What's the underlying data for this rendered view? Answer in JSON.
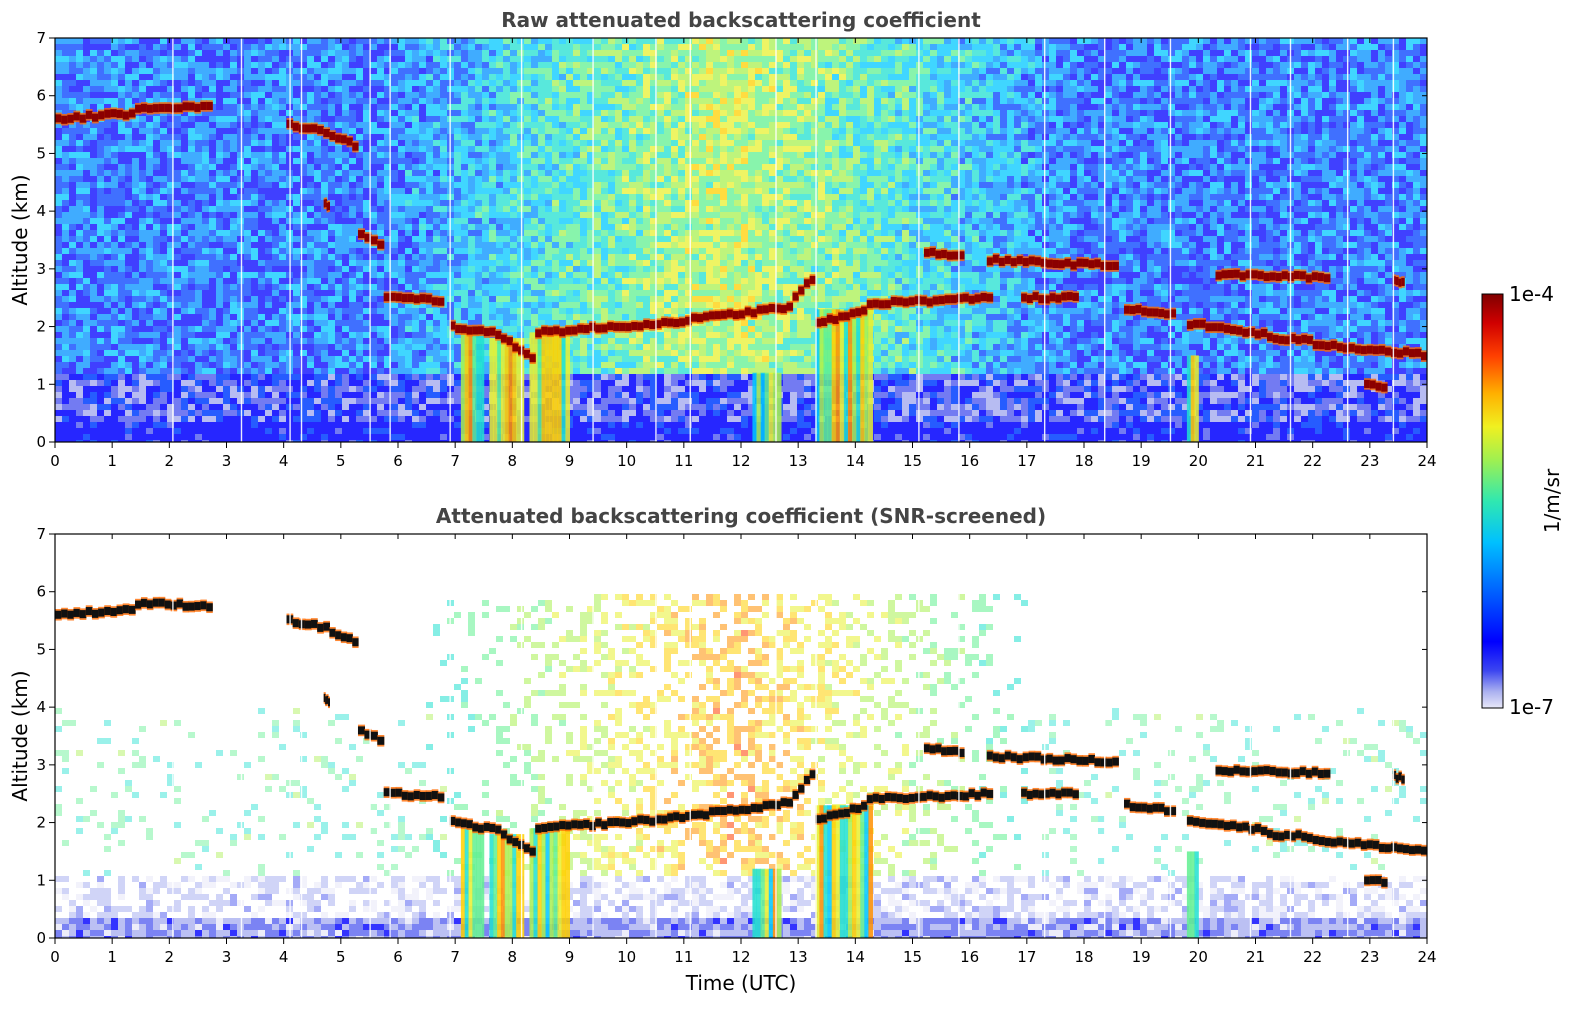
{
  "chart_data": [
    {
      "type": "heatmap",
      "title": "Raw attenuated backscattering coefficient",
      "xlabel": "",
      "ylabel": "Altitude (km)",
      "xlim": [
        0,
        24
      ],
      "ylim": [
        0,
        7
      ],
      "x_ticks": [
        "0",
        "1",
        "2",
        "3",
        "4",
        "5",
        "6",
        "7",
        "8",
        "9",
        "10",
        "11",
        "12",
        "13",
        "14",
        "15",
        "16",
        "17",
        "18",
        "19",
        "20",
        "21",
        "22",
        "23",
        "24"
      ],
      "y_ticks": [
        "0",
        "1",
        "2",
        "3",
        "4",
        "5",
        "6",
        "7"
      ],
      "screened": false,
      "cloud_layers": [
        {
          "t": [
            0,
            1.4
          ],
          "alt": [
            5.6,
            5.7
          ]
        },
        {
          "t": [
            1.4,
            2.75
          ],
          "alt": [
            5.8,
            5.8
          ]
        },
        {
          "t": [
            4.05,
            4.8
          ],
          "alt": [
            5.5,
            5.35
          ]
        },
        {
          "t": [
            4.8,
            5.3
          ],
          "alt": [
            5.3,
            5.1
          ]
        },
        {
          "t": [
            4.7,
            4.8
          ],
          "alt": [
            4.15,
            4.05
          ]
        },
        {
          "t": [
            5.3,
            5.75
          ],
          "alt": [
            3.6,
            3.35
          ]
        },
        {
          "t": [
            5.75,
            6.8
          ],
          "alt": [
            2.5,
            2.45
          ]
        },
        {
          "t": [
            6.9,
            7.8
          ],
          "alt": [
            2.0,
            1.85
          ]
        },
        {
          "t": [
            7.8,
            8.4
          ],
          "alt": [
            1.8,
            1.4
          ]
        },
        {
          "t": [
            8.4,
            10.5
          ],
          "alt": [
            1.9,
            2.05
          ]
        },
        {
          "t": [
            10.5,
            12.9
          ],
          "alt": [
            2.05,
            2.35
          ]
        },
        {
          "t": [
            12.9,
            13.3
          ],
          "alt": [
            2.5,
            2.95
          ]
        },
        {
          "t": [
            13.3,
            14.2
          ],
          "alt": [
            2.05,
            2.3
          ]
        },
        {
          "t": [
            14.2,
            16.4
          ],
          "alt": [
            2.4,
            2.5
          ]
        },
        {
          "t": [
            15.2,
            15.9
          ],
          "alt": [
            3.3,
            3.2
          ]
        },
        {
          "t": [
            16.3,
            18.6
          ],
          "alt": [
            3.15,
            3.05
          ]
        },
        {
          "t": [
            16.9,
            17.9
          ],
          "alt": [
            2.5,
            2.5
          ]
        },
        {
          "t": [
            18.7,
            19.6
          ],
          "alt": [
            2.3,
            2.2
          ]
        },
        {
          "t": [
            19.8,
            21.2
          ],
          "alt": [
            2.05,
            1.85
          ]
        },
        {
          "t": [
            21.2,
            22.0
          ],
          "alt": [
            1.8,
            1.75
          ]
        },
        {
          "t": [
            22.0,
            24.0
          ],
          "alt": [
            1.7,
            1.5
          ]
        },
        {
          "t": [
            20.3,
            22.3
          ],
          "alt": [
            2.9,
            2.85
          ]
        },
        {
          "t": [
            22.9,
            23.3
          ],
          "alt": [
            1.0,
            0.95
          ]
        },
        {
          "t": [
            23.4,
            23.6
          ],
          "alt": [
            2.8,
            2.75
          ]
        }
      ],
      "precip_shafts": [
        {
          "t": [
            7.1,
            7.5
          ],
          "top": 1.9
        },
        {
          "t": [
            7.6,
            8.2
          ],
          "top": 1.8
        },
        {
          "t": [
            8.3,
            9.0
          ],
          "top": 1.9
        },
        {
          "t": [
            12.2,
            12.7
          ],
          "top": 1.2
        },
        {
          "t": [
            13.3,
            14.3
          ],
          "top": 2.3
        },
        {
          "t": [
            19.8,
            20.0
          ],
          "top": 1.5
        }
      ]
    },
    {
      "type": "heatmap",
      "title": "Attenuated backscattering coefficient (SNR-screened)",
      "xlabel": "Time (UTC)",
      "ylabel": "Altitude (km)",
      "xlim": [
        0,
        24
      ],
      "ylim": [
        0,
        7
      ],
      "x_ticks": [
        "0",
        "1",
        "2",
        "3",
        "4",
        "5",
        "6",
        "7",
        "8",
        "9",
        "10",
        "11",
        "12",
        "13",
        "14",
        "15",
        "16",
        "17",
        "18",
        "19",
        "20",
        "21",
        "22",
        "23",
        "24"
      ],
      "y_ticks": [
        "0",
        "1",
        "2",
        "3",
        "4",
        "5",
        "6",
        "7"
      ],
      "screened": true,
      "cloud_layers": [
        {
          "t": [
            0,
            1.4
          ],
          "alt": [
            5.6,
            5.7
          ]
        },
        {
          "t": [
            1.4,
            2.75
          ],
          "alt": [
            5.8,
            5.75
          ]
        },
        {
          "t": [
            4.05,
            4.8
          ],
          "alt": [
            5.5,
            5.35
          ]
        },
        {
          "t": [
            4.8,
            5.3
          ],
          "alt": [
            5.3,
            5.1
          ]
        },
        {
          "t": [
            4.7,
            4.8
          ],
          "alt": [
            4.15,
            4.05
          ]
        },
        {
          "t": [
            5.3,
            5.75
          ],
          "alt": [
            3.6,
            3.35
          ]
        },
        {
          "t": [
            5.75,
            6.8
          ],
          "alt": [
            2.5,
            2.45
          ]
        },
        {
          "t": [
            6.9,
            7.8
          ],
          "alt": [
            2.0,
            1.85
          ]
        },
        {
          "t": [
            7.8,
            8.4
          ],
          "alt": [
            1.8,
            1.4
          ]
        },
        {
          "t": [
            8.4,
            10.5
          ],
          "alt": [
            1.9,
            2.05
          ]
        },
        {
          "t": [
            10.5,
            12.9
          ],
          "alt": [
            2.05,
            2.35
          ]
        },
        {
          "t": [
            12.9,
            13.3
          ],
          "alt": [
            2.5,
            2.95
          ]
        },
        {
          "t": [
            13.3,
            14.2
          ],
          "alt": [
            2.05,
            2.3
          ]
        },
        {
          "t": [
            14.2,
            16.4
          ],
          "alt": [
            2.4,
            2.5
          ]
        },
        {
          "t": [
            15.2,
            15.9
          ],
          "alt": [
            3.3,
            3.2
          ]
        },
        {
          "t": [
            16.3,
            18.6
          ],
          "alt": [
            3.15,
            3.05
          ]
        },
        {
          "t": [
            16.9,
            17.9
          ],
          "alt": [
            2.5,
            2.5
          ]
        },
        {
          "t": [
            18.7,
            19.6
          ],
          "alt": [
            2.3,
            2.2
          ]
        },
        {
          "t": [
            19.8,
            21.2
          ],
          "alt": [
            2.05,
            1.85
          ]
        },
        {
          "t": [
            21.2,
            22.0
          ],
          "alt": [
            1.8,
            1.75
          ]
        },
        {
          "t": [
            22.0,
            24.0
          ],
          "alt": [
            1.7,
            1.5
          ]
        },
        {
          "t": [
            20.3,
            22.3
          ],
          "alt": [
            2.9,
            2.85
          ]
        },
        {
          "t": [
            22.9,
            23.3
          ],
          "alt": [
            1.0,
            0.95
          ]
        },
        {
          "t": [
            23.4,
            23.6
          ],
          "alt": [
            2.8,
            2.75
          ]
        }
      ],
      "precip_shafts": [
        {
          "t": [
            7.1,
            7.5
          ],
          "top": 1.9
        },
        {
          "t": [
            7.6,
            8.2
          ],
          "top": 1.8
        },
        {
          "t": [
            8.3,
            9.0
          ],
          "top": 1.9
        },
        {
          "t": [
            12.2,
            12.7
          ],
          "top": 1.2
        },
        {
          "t": [
            13.3,
            14.3
          ],
          "top": 2.3
        },
        {
          "t": [
            19.8,
            20.0
          ],
          "top": 1.5
        }
      ]
    }
  ],
  "colorbar": {
    "max_label": "1e-4",
    "min_label": "1e-7",
    "unit_label": "1/m/sr",
    "colormap": [
      "#e8e8f8",
      "#aab0f0",
      "#5a64f0",
      "#0000ff",
      "#0040ff",
      "#0090ff",
      "#00c8ff",
      "#20e0d0",
      "#60f090",
      "#a8f050",
      "#e8f030",
      "#ffd000",
      "#ff9000",
      "#ff4000",
      "#e00000",
      "#900000"
    ]
  }
}
